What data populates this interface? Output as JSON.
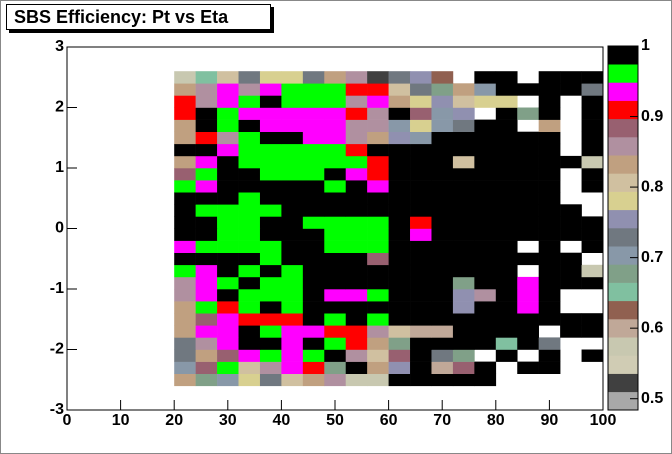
{
  "chart_data": {
    "type": "heatmap",
    "title": "SBS Efficiency: Pt vs Eta",
    "xlim": [
      0,
      100
    ],
    "xticks": [
      0,
      10,
      20,
      30,
      40,
      50,
      60,
      70,
      80,
      90,
      100
    ],
    "ylim": [
      -3,
      3
    ],
    "yticks": [
      -3,
      -2,
      -1,
      0,
      1,
      2,
      3
    ],
    "zlim": [
      0.484,
      1
    ],
    "zticks": [
      0.5,
      0.6,
      0.7,
      0.8,
      0.9,
      1
    ],
    "palette": [
      "#a8a8a8",
      "#404040",
      "#d0ccb4",
      "#c8c8b0",
      "#c0a898",
      "#906050",
      "#80c0a0",
      "#80a088",
      "#8898a8",
      "#707880",
      "#9090b0",
      "#d8d090",
      "#d0c0a0",
      "#c0a080",
      "#b090a0",
      "#986070",
      "#ff0000",
      "#ff00ff",
      "#00ff00",
      "#000000"
    ],
    "xbins": [
      20,
      24,
      28,
      32,
      36,
      40,
      44,
      48,
      52,
      56,
      60,
      64,
      68,
      72,
      76,
      80,
      84,
      88,
      92,
      96,
      100
    ],
    "ybins": [
      -2.6,
      -2.4,
      -2.2,
      -2.0,
      -1.8,
      -1.6,
      -1.4,
      -1.2,
      -1.0,
      -0.8,
      -0.6,
      -0.4,
      -0.2,
      0,
      0.2,
      0.4,
      0.6,
      0.8,
      1.0,
      1.2,
      1.4,
      1.6,
      1.8,
      2.0,
      2.2,
      2.4,
      2.6
    ],
    "z": [
      [
        0.83,
        0.68,
        0.7,
        0.78,
        0.73,
        0.81,
        0.83,
        0.86,
        0.57,
        0.57,
        0.99,
        0.99,
        0.99,
        0.99,
        0.99,
        null,
        null,
        null,
        null,
        null
      ],
      [
        0.7,
        0.89,
        0.96,
        0.81,
        0.86,
        0.94,
        0.91,
        0.68,
        0.99,
        0.83,
        0.76,
        0.99,
        0.6,
        0.89,
        0.99,
        null,
        0.99,
        0.99,
        null,
        null
      ],
      [
        0.73,
        0.83,
        0.89,
        0.94,
        0.96,
        0.94,
        0.96,
        0.99,
        0.86,
        0.81,
        0.89,
        0.99,
        0.73,
        0.68,
        null,
        0.99,
        null,
        0.99,
        null,
        0.99
      ],
      [
        0.73,
        0.86,
        0.94,
        0.99,
        0.99,
        0.94,
        0.99,
        0.96,
        0.91,
        0.83,
        0.68,
        0.99,
        0.99,
        0.99,
        0.99,
        0.65,
        0.99,
        0.73,
        null,
        null
      ],
      [
        0.83,
        0.94,
        0.94,
        0.99,
        0.96,
        0.94,
        0.94,
        0.91,
        0.91,
        0.86,
        0.81,
        0.6,
        0.6,
        0.99,
        0.99,
        0.99,
        0.99,
        null,
        0.99,
        0.99
      ],
      [
        0.83,
        0.89,
        0.94,
        0.91,
        0.91,
        0.91,
        0.99,
        0.96,
        0.99,
        0.96,
        0.99,
        0.99,
        0.99,
        0.99,
        0.99,
        0.99,
        0.99,
        0.99,
        0.99,
        0.99
      ],
      [
        0.83,
        0.96,
        0.91,
        0.96,
        0.99,
        0.96,
        0.99,
        0.99,
        0.99,
        0.99,
        0.99,
        0.99,
        0.99,
        0.76,
        0.99,
        0.99,
        0.94,
        0.99,
        null,
        null
      ],
      [
        0.86,
        0.94,
        0.99,
        0.96,
        0.96,
        0.96,
        0.99,
        0.94,
        0.94,
        0.96,
        0.99,
        0.99,
        0.99,
        0.76,
        0.86,
        0.99,
        0.94,
        0.99,
        null,
        null
      ],
      [
        0.86,
        0.94,
        0.96,
        0.99,
        0.96,
        0.96,
        0.99,
        0.99,
        0.99,
        0.99,
        0.99,
        0.99,
        0.99,
        0.68,
        0.99,
        0.99,
        0.94,
        0.99,
        0.99,
        0.99
      ],
      [
        0.96,
        0.94,
        0.99,
        0.96,
        0.99,
        0.96,
        0.99,
        0.99,
        0.99,
        0.99,
        0.99,
        0.99,
        0.99,
        0.99,
        0.99,
        0.99,
        null,
        0.99,
        0.99,
        0.57
      ],
      [
        0.99,
        0.99,
        0.99,
        0.99,
        0.96,
        0.99,
        0.99,
        0.99,
        0.99,
        0.89,
        0.99,
        0.99,
        0.99,
        0.99,
        0.99,
        0.99,
        0.99,
        0.99,
        0.99,
        null
      ],
      [
        0.94,
        0.96,
        0.96,
        0.96,
        0.96,
        0.99,
        0.99,
        0.96,
        0.96,
        0.96,
        0.99,
        0.99,
        0.99,
        0.99,
        0.99,
        0.99,
        null,
        0.99,
        null,
        0.99
      ],
      [
        0.99,
        0.99,
        0.96,
        0.96,
        0.99,
        0.99,
        0.99,
        0.96,
        0.96,
        0.96,
        0.99,
        0.94,
        0.99,
        0.99,
        0.99,
        0.99,
        0.99,
        0.99,
        0.99,
        0.99
      ],
      [
        0.99,
        0.99,
        0.96,
        0.96,
        0.99,
        0.99,
        0.96,
        0.96,
        0.96,
        0.96,
        0.99,
        0.91,
        0.99,
        0.99,
        0.99,
        0.99,
        0.99,
        0.99,
        0.99,
        0.99
      ],
      [
        0.99,
        0.96,
        0.96,
        0.96,
        0.96,
        0.99,
        0.99,
        0.99,
        0.99,
        0.99,
        0.99,
        0.99,
        0.99,
        0.99,
        0.99,
        0.99,
        0.99,
        0.99,
        0.99,
        null
      ],
      [
        0.99,
        0.99,
        0.99,
        0.96,
        0.99,
        0.99,
        0.99,
        0.99,
        0.99,
        0.99,
        0.99,
        0.99,
        0.99,
        0.99,
        0.99,
        0.99,
        0.99,
        0.99,
        null,
        null
      ],
      [
        0.96,
        0.94,
        0.99,
        0.99,
        0.99,
        0.99,
        0.99,
        0.96,
        0.99,
        0.94,
        0.99,
        0.99,
        0.99,
        0.99,
        0.99,
        0.99,
        0.99,
        0.99,
        null,
        0.99
      ],
      [
        0.89,
        0.96,
        0.99,
        0.99,
        0.96,
        0.96,
        0.96,
        0.99,
        0.94,
        0.91,
        0.99,
        0.99,
        0.99,
        0.99,
        0.99,
        0.99,
        0.99,
        0.99,
        null,
        0.99
      ],
      [
        0.83,
        0.94,
        0.99,
        0.96,
        0.96,
        0.96,
        0.96,
        0.96,
        0.96,
        0.91,
        0.99,
        0.99,
        0.99,
        0.81,
        0.99,
        0.99,
        0.99,
        0.99,
        0.99,
        0.57
      ],
      [
        0.99,
        0.99,
        0.94,
        0.96,
        0.96,
        0.96,
        0.96,
        0.96,
        0.91,
        0.99,
        0.99,
        0.99,
        0.99,
        0.99,
        0.99,
        0.99,
        0.99,
        0.99,
        null,
        0.99
      ],
      [
        0.83,
        0.91,
        0.86,
        0.96,
        0.99,
        0.99,
        0.94,
        0.94,
        0.86,
        0.83,
        0.76,
        0.7,
        0.99,
        0.99,
        0.99,
        0.99,
        0.99,
        0.99,
        null,
        0.99
      ],
      [
        0.83,
        0.99,
        0.96,
        0.99,
        0.94,
        0.94,
        0.94,
        0.94,
        0.86,
        0.86,
        0.7,
        0.78,
        0.7,
        0.73,
        0.99,
        0.99,
        null,
        0.83,
        null,
        0.99
      ],
      [
        0.91,
        0.99,
        0.96,
        0.94,
        0.94,
        0.94,
        0.94,
        0.94,
        0.91,
        0.86,
        0.99,
        0.89,
        0.7,
        0.76,
        null,
        0.99,
        0.68,
        0.99,
        null,
        0.99
      ],
      [
        0.91,
        0.86,
        0.94,
        0.96,
        0.99,
        0.96,
        0.96,
        0.96,
        0.86,
        0.94,
        0.83,
        0.78,
        0.76,
        0.81,
        0.78,
        0.78,
        null,
        0.99,
        null,
        0.99
      ],
      [
        0.83,
        0.86,
        0.94,
        0.86,
        0.94,
        0.96,
        0.96,
        0.96,
        0.91,
        0.91,
        0.81,
        0.73,
        0.68,
        0.83,
        0.7,
        0.99,
        0.99,
        0.99,
        0.99,
        0.73
      ],
      [
        0.57,
        0.65,
        0.81,
        0.73,
        0.78,
        0.78,
        0.73,
        0.83,
        0.86,
        0.52,
        0.73,
        0.76,
        0.63,
        null,
        0.99,
        0.99,
        null,
        0.99,
        0.99,
        0.99
      ]
    ]
  }
}
